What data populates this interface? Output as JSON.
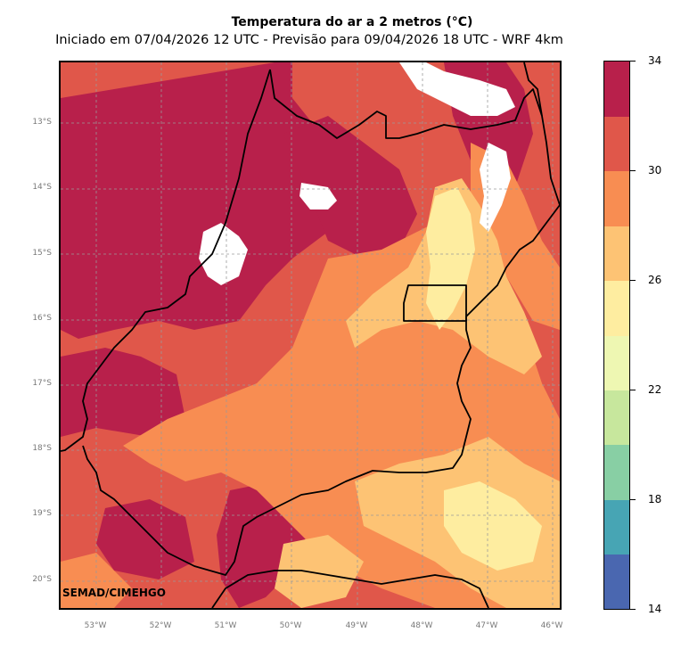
{
  "header": {
    "title": "Temperatura do ar a 2 metros (°C)",
    "subtitle": "Iniciado em 07/04/2026 12 UTC - Previsão para 09/04/2026 18 UTC - WRF 4km"
  },
  "credit": "SEMAD/CIMEHGO",
  "map": {
    "lat_labels": [
      "13°S",
      "14°S",
      "15°S",
      "16°S",
      "17°S",
      "18°S",
      "19°S",
      "20°S"
    ],
    "lon_labels": [
      "53°W",
      "52°W",
      "51°W",
      "50°W",
      "49°W",
      "48°W",
      "47°W",
      "46°W"
    ],
    "boundary_color": "#000000",
    "gridline_color": "#9a9a9a"
  },
  "colorbar": {
    "min": 14,
    "max": 34,
    "tick_labels": [
      "34",
      "30",
      "26",
      "22",
      "18",
      "14"
    ],
    "bands": [
      {
        "from": 14,
        "to": 16,
        "color": "#4a67b0"
      },
      {
        "from": 16,
        "to": 18,
        "color": "#47a5b4"
      },
      {
        "from": 18,
        "to": 20,
        "color": "#88cfa4"
      },
      {
        "from": 20,
        "to": 22,
        "color": "#c7e79d"
      },
      {
        "from": 22,
        "to": 24,
        "color": "#eef7b2"
      },
      {
        "from": 24,
        "to": 26,
        "color": "#feeda0"
      },
      {
        "from": 26,
        "to": 28,
        "color": "#fdc374"
      },
      {
        "from": 28,
        "to": 30,
        "color": "#f88d52"
      },
      {
        "from": 30,
        "to": 32,
        "color": "#e0574a"
      },
      {
        "from": 32,
        "to": 34,
        "color": "#b8204b"
      }
    ]
  }
}
